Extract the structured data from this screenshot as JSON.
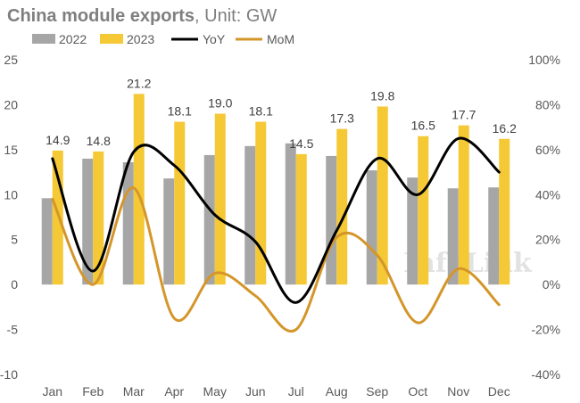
{
  "chart_data": {
    "type": "bar+line",
    "title": "China module exports",
    "unit": ", Unit: GW",
    "categories": [
      "Jan",
      "Feb",
      "Mar",
      "Apr",
      "May",
      "Jun",
      "Jul",
      "Aug",
      "Sep",
      "Oct",
      "Nov",
      "Dec"
    ],
    "bar_series": [
      {
        "name": "2022",
        "color": "#a6a6a6",
        "values": [
          9.6,
          14.0,
          13.6,
          11.8,
          14.4,
          15.4,
          15.7,
          14.3,
          12.7,
          11.9,
          10.7,
          10.8
        ]
      },
      {
        "name": "2023",
        "color": "#f5c835",
        "values": [
          14.9,
          14.8,
          21.2,
          18.1,
          19.0,
          18.1,
          14.5,
          17.3,
          19.8,
          16.5,
          17.7,
          16.2
        ],
        "data_labels": [
          "14.9",
          "14.8",
          "21.2",
          "18.1",
          "19.0",
          "18.1",
          "14.5",
          "17.3",
          "19.8",
          "16.5",
          "17.7",
          "16.2"
        ]
      }
    ],
    "line_series": [
      {
        "name": "YoY",
        "color": "#000000",
        "axis": "right",
        "values": [
          56,
          6,
          59,
          53,
          31,
          19,
          -8,
          24,
          56,
          40,
          65,
          50
        ]
      },
      {
        "name": "MoM",
        "color": "#d4962a",
        "axis": "right",
        "values": [
          38,
          0,
          43,
          -15,
          5,
          -5,
          -20,
          21,
          13,
          -17,
          7,
          -9
        ]
      }
    ],
    "y_left": {
      "min": -10,
      "max": 25,
      "ticks": [
        "25",
        "20",
        "15",
        "10",
        "5",
        "0",
        "-5",
        "-10"
      ],
      "tick_values": [
        25,
        20,
        15,
        10,
        5,
        0,
        -5,
        -10
      ]
    },
    "y_right": {
      "min": -40,
      "max": 100,
      "ticks": [
        "100%",
        "80%",
        "60%",
        "40%",
        "20%",
        "0%",
        "-20%",
        "-40%"
      ],
      "tick_values": [
        100,
        80,
        60,
        40,
        20,
        0,
        -20,
        -40
      ]
    },
    "legend_position": "top-left",
    "grid": false,
    "watermark": "InfoLink"
  }
}
